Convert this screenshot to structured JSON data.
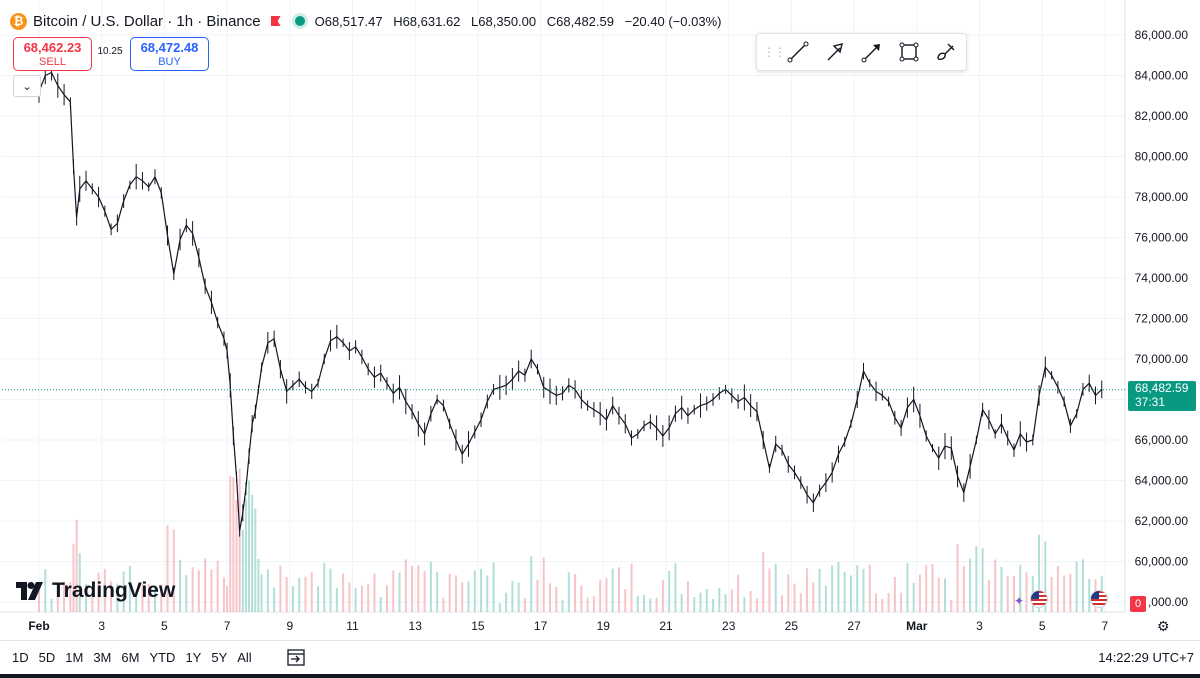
{
  "header": {
    "coin_icon": "bitcoin-icon",
    "title": "Bitcoin / U.S. Dollar · 1h · Binance",
    "ohlc": {
      "open_label": "O",
      "open": "68,517.47",
      "high_label": "H",
      "high": "68,631.62",
      "low_label": "L",
      "low": "68,350.00",
      "close_label": "C",
      "close": "68,482.59",
      "change": "−20.40 (−0.03%)"
    }
  },
  "trade": {
    "sell_price": "68,462.23",
    "sell_label": "SELL",
    "spread": "10.25",
    "buy_price": "68,472.48",
    "buy_label": "BUY"
  },
  "toolbar": {
    "tools": [
      "trend-line-icon",
      "arrow-icon",
      "arrow-marker-icon",
      "rectangle-icon",
      "brush-icon"
    ]
  },
  "branding": {
    "logo_text": "TradingView"
  },
  "last_price": {
    "value": "68,482.59",
    "countdown": "37:31"
  },
  "badge_zero": "0",
  "bottom_bar": {
    "ranges": [
      "1D",
      "5D",
      "1M",
      "3M",
      "6M",
      "YTD",
      "1Y",
      "5Y",
      "All"
    ],
    "clock": "14:22:29 UTC+7"
  },
  "colors": {
    "up": "#089981",
    "down": "#f23645",
    "candle": "#131722",
    "grid": "#f0f3fa"
  },
  "chart_data": {
    "type": "candlestick",
    "price_axis": {
      "labels": [
        "86,000.00",
        "84,000.00",
        "82,000.00",
        "80,000.00",
        "78,000.00",
        "76,000.00",
        "74,000.00",
        "72,000.00",
        "70,000.00",
        "68,000.00",
        "66,000.00",
        "64,000.00",
        "62,000.00",
        "60,000.00",
        "58,000.00"
      ],
      "values": [
        86000,
        84000,
        82000,
        80000,
        78000,
        76000,
        74000,
        72000,
        70000,
        68000,
        66000,
        64000,
        62000,
        60000,
        58000
      ],
      "last_label": ",000.00"
    },
    "ylim": [
      57500,
      86700
    ],
    "time_axis": {
      "labels": [
        "Feb",
        "3",
        "5",
        "7",
        "9",
        "11",
        "13",
        "15",
        "17",
        "19",
        "21",
        "23",
        "25",
        "27",
        "Mar",
        "3",
        "5",
        "7"
      ],
      "days": [
        0,
        2,
        4,
        6,
        8,
        10,
        12,
        14,
        16,
        18,
        20,
        22,
        24,
        26,
        28,
        30,
        32,
        34
      ]
    },
    "x_unit": "days since Feb 1 (hourly candles)",
    "xlim": [
      -0.4,
      36.0
    ],
    "closes": [
      [
        0.0,
        83200
      ],
      [
        0.2,
        84000
      ],
      [
        0.4,
        84150
      ],
      [
        0.6,
        83500
      ],
      [
        0.8,
        83050
      ],
      [
        1.0,
        82700
      ],
      [
        1.1,
        79500
      ],
      [
        1.2,
        77000
      ],
      [
        1.3,
        78400
      ],
      [
        1.5,
        78800
      ],
      [
        1.7,
        78400
      ],
      [
        1.9,
        78000
      ],
      [
        2.1,
        77300
      ],
      [
        2.3,
        76400
      ],
      [
        2.5,
        76700
      ],
      [
        2.7,
        77800
      ],
      [
        2.9,
        78600
      ],
      [
        3.1,
        79000
      ],
      [
        3.3,
        78800
      ],
      [
        3.5,
        78500
      ],
      [
        3.7,
        79000
      ],
      [
        3.9,
        78200
      ],
      [
        4.1,
        76100
      ],
      [
        4.3,
        74200
      ],
      [
        4.5,
        75900
      ],
      [
        4.7,
        76600
      ],
      [
        4.9,
        76200
      ],
      [
        5.1,
        75000
      ],
      [
        5.3,
        73600
      ],
      [
        5.5,
        72800
      ],
      [
        5.7,
        71800
      ],
      [
        5.9,
        71000
      ],
      [
        6.0,
        70400
      ],
      [
        6.1,
        68700
      ],
      [
        6.2,
        66200
      ],
      [
        6.3,
        64200
      ],
      [
        6.4,
        61500
      ],
      [
        6.5,
        62400
      ],
      [
        6.6,
        63600
      ],
      [
        6.7,
        65200
      ],
      [
        6.8,
        66800
      ],
      [
        6.9,
        67400
      ],
      [
        7.0,
        68500
      ],
      [
        7.1,
        69600
      ],
      [
        7.3,
        70800
      ],
      [
        7.5,
        71000
      ],
      [
        7.7,
        69500
      ],
      [
        7.9,
        68400
      ],
      [
        8.1,
        68700
      ],
      [
        8.3,
        69000
      ],
      [
        8.5,
        68600
      ],
      [
        8.7,
        68400
      ],
      [
        8.9,
        68800
      ],
      [
        9.1,
        70000
      ],
      [
        9.3,
        70900
      ],
      [
        9.5,
        71100
      ],
      [
        9.7,
        70800
      ],
      [
        9.9,
        70400
      ],
      [
        10.1,
        70600
      ],
      [
        10.3,
        70100
      ],
      [
        10.5,
        69500
      ],
      [
        10.7,
        69100
      ],
      [
        10.9,
        69300
      ],
      [
        11.1,
        68800
      ],
      [
        11.3,
        68300
      ],
      [
        11.5,
        68600
      ],
      [
        11.7,
        67900
      ],
      [
        11.9,
        67400
      ],
      [
        12.1,
        66800
      ],
      [
        12.3,
        66300
      ],
      [
        12.5,
        67300
      ],
      [
        12.7,
        68000
      ],
      [
        12.9,
        67700
      ],
      [
        13.1,
        66800
      ],
      [
        13.3,
        66000
      ],
      [
        13.5,
        65300
      ],
      [
        13.7,
        65800
      ],
      [
        13.9,
        66400
      ],
      [
        14.1,
        67000
      ],
      [
        14.3,
        67900
      ],
      [
        14.5,
        68500
      ],
      [
        14.7,
        68600
      ],
      [
        14.9,
        68700
      ],
      [
        15.1,
        69000
      ],
      [
        15.3,
        69400
      ],
      [
        15.5,
        69200
      ],
      [
        15.7,
        70000
      ],
      [
        15.9,
        69500
      ],
      [
        16.1,
        68600
      ],
      [
        16.3,
        68400
      ],
      [
        16.5,
        68200
      ],
      [
        16.7,
        68300
      ],
      [
        16.9,
        68700
      ],
      [
        17.1,
        68500
      ],
      [
        17.3,
        68000
      ],
      [
        17.5,
        67700
      ],
      [
        17.7,
        67500
      ],
      [
        17.9,
        67300
      ],
      [
        18.1,
        67000
      ],
      [
        18.3,
        67700
      ],
      [
        18.5,
        67200
      ],
      [
        18.7,
        66800
      ],
      [
        18.9,
        66100
      ],
      [
        19.1,
        66300
      ],
      [
        19.3,
        66700
      ],
      [
        19.5,
        66900
      ],
      [
        19.7,
        66600
      ],
      [
        19.9,
        66200
      ],
      [
        20.1,
        66600
      ],
      [
        20.3,
        67300
      ],
      [
        20.5,
        67600
      ],
      [
        20.7,
        67200
      ],
      [
        20.9,
        67500
      ],
      [
        21.1,
        67700
      ],
      [
        21.3,
        67800
      ],
      [
        21.5,
        68000
      ],
      [
        21.7,
        68300
      ],
      [
        21.9,
        68500
      ],
      [
        22.1,
        68200
      ],
      [
        22.3,
        67900
      ],
      [
        22.5,
        68100
      ],
      [
        22.7,
        67700
      ],
      [
        22.9,
        67400
      ],
      [
        23.1,
        66000
      ],
      [
        23.3,
        64600
      ],
      [
        23.5,
        65800
      ],
      [
        23.7,
        65500
      ],
      [
        23.9,
        64800
      ],
      [
        24.1,
        64400
      ],
      [
        24.3,
        63900
      ],
      [
        24.5,
        63300
      ],
      [
        24.7,
        62900
      ],
      [
        24.9,
        63500
      ],
      [
        25.1,
        63900
      ],
      [
        25.3,
        64400
      ],
      [
        25.5,
        65300
      ],
      [
        25.7,
        65900
      ],
      [
        25.9,
        66800
      ],
      [
        26.1,
        68000
      ],
      [
        26.3,
        69400
      ],
      [
        26.5,
        68800
      ],
      [
        26.7,
        68400
      ],
      [
        26.9,
        68200
      ],
      [
        27.1,
        67900
      ],
      [
        27.3,
        67100
      ],
      [
        27.5,
        66600
      ],
      [
        27.7,
        67600
      ],
      [
        27.9,
        68000
      ],
      [
        28.1,
        67200
      ],
      [
        28.3,
        66200
      ],
      [
        28.5,
        65600
      ],
      [
        28.7,
        65100
      ],
      [
        28.9,
        65700
      ],
      [
        29.1,
        65600
      ],
      [
        29.3,
        64200
      ],
      [
        29.5,
        63400
      ],
      [
        29.7,
        64700
      ],
      [
        29.9,
        66000
      ],
      [
        30.1,
        67500
      ],
      [
        30.3,
        67000
      ],
      [
        30.5,
        66300
      ],
      [
        30.7,
        66800
      ],
      [
        30.9,
        66100
      ],
      [
        31.1,
        65500
      ],
      [
        31.3,
        66300
      ],
      [
        31.5,
        65900
      ],
      [
        31.7,
        66000
      ],
      [
        31.9,
        68200
      ],
      [
        32.1,
        69600
      ],
      [
        32.3,
        69200
      ],
      [
        32.5,
        68600
      ],
      [
        32.7,
        67900
      ],
      [
        32.9,
        66700
      ],
      [
        33.1,
        67300
      ],
      [
        33.3,
        68500
      ],
      [
        33.5,
        68800
      ],
      [
        33.7,
        68200
      ],
      [
        33.9,
        68500
      ]
    ],
    "grid": true,
    "last_price": 68482.59
  }
}
